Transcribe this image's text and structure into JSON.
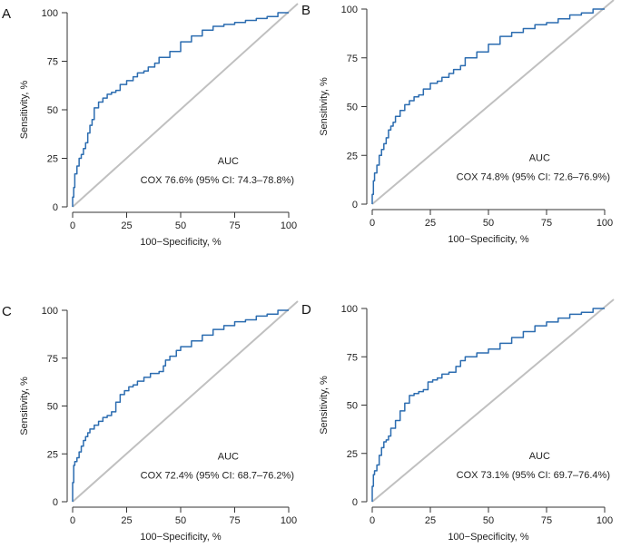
{
  "chart_data": [
    {
      "type": "line",
      "panel": "A",
      "xlabel": "100−Specificity, %",
      "ylabel": "Sensitivity, %",
      "xlim": [
        0,
        100
      ],
      "ylim": [
        0,
        100
      ],
      "xticks": [
        "0",
        "25",
        "50",
        "75",
        "100"
      ],
      "yticks": [
        "0",
        "25",
        "50",
        "75",
        "100"
      ],
      "legend_title": "AUC",
      "legend_text": "COX  76.6% (95% CI: 74.3–78.8%)",
      "series": [
        {
          "name": "ROC",
          "x": [
            0,
            0.5,
            1,
            2,
            3,
            4,
            5,
            6,
            7,
            8,
            9,
            10,
            12,
            14,
            16,
            18,
            20,
            22,
            25,
            28,
            30,
            33,
            35,
            38,
            40,
            45,
            50,
            55,
            60,
            65,
            70,
            75,
            80,
            85,
            90,
            95,
            100
          ],
          "y": [
            0,
            5,
            10,
            17,
            21,
            25,
            27,
            30,
            33,
            38,
            42,
            45,
            51,
            54,
            56,
            58,
            59,
            60,
            63,
            65,
            67,
            69,
            70,
            72,
            74,
            77,
            80,
            85,
            88,
            91,
            93,
            94,
            95,
            96,
            97,
            98,
            100
          ]
        },
        {
          "name": "reference",
          "x": [
            0,
            100
          ],
          "y": [
            0,
            100
          ]
        }
      ]
    },
    {
      "type": "line",
      "panel": "B",
      "xlabel": "100−Specificity, %",
      "ylabel": "Sensitivity, %",
      "xlim": [
        0,
        100
      ],
      "ylim": [
        0,
        100
      ],
      "xticks": [
        "0",
        "25",
        "50",
        "75",
        "100"
      ],
      "yticks": [
        "0",
        "25",
        "50",
        "75",
        "100"
      ],
      "legend_title": "AUC",
      "legend_text": "COX  74.8% (95% CI: 72.6–76.9%)",
      "series": [
        {
          "name": "ROC",
          "x": [
            0,
            0.5,
            1,
            2,
            3,
            4,
            5,
            6,
            7,
            8,
            9,
            10,
            12,
            14,
            16,
            18,
            20,
            22,
            25,
            28,
            30,
            33,
            35,
            38,
            40,
            45,
            50,
            55,
            60,
            65,
            70,
            75,
            80,
            85,
            90,
            95,
            100
          ],
          "y": [
            0,
            5,
            12,
            16,
            20,
            25,
            28,
            31,
            34,
            38,
            40,
            42,
            45,
            48,
            51,
            53,
            55,
            56,
            59,
            62,
            63,
            65,
            67,
            69,
            71,
            75,
            78,
            82,
            86,
            88,
            90,
            92,
            93,
            95,
            97,
            98,
            100
          ]
        },
        {
          "name": "reference",
          "x": [
            0,
            100
          ],
          "y": [
            0,
            100
          ]
        }
      ]
    },
    {
      "type": "line",
      "panel": "C",
      "xlabel": "100−Specificity, %",
      "ylabel": "Sensitivity, %",
      "xlim": [
        0,
        100
      ],
      "ylim": [
        0,
        100
      ],
      "xticks": [
        "0",
        "25",
        "50",
        "75",
        "100"
      ],
      "yticks": [
        "0",
        "25",
        "50",
        "75",
        "100"
      ],
      "legend_title": "AUC",
      "legend_text": "COX  72.4% (95% CI: 68.7–76.2%)",
      "series": [
        {
          "name": "ROC",
          "x": [
            0,
            0.5,
            1,
            2,
            3,
            4,
            5,
            6,
            7,
            8,
            10,
            12,
            14,
            16,
            18,
            20,
            22,
            24,
            26,
            28,
            30,
            33,
            36,
            40,
            42,
            43,
            45,
            48,
            50,
            55,
            60,
            65,
            70,
            75,
            80,
            85,
            90,
            95,
            100
          ],
          "y": [
            0,
            10,
            19,
            21,
            23,
            26,
            29,
            32,
            34,
            36,
            38,
            40,
            42,
            44,
            45,
            47,
            52,
            56,
            58,
            60,
            61,
            63,
            65,
            67,
            68,
            71,
            74,
            76,
            79,
            81,
            84,
            87,
            90,
            92,
            94,
            95,
            97,
            98,
            100
          ]
        },
        {
          "name": "reference",
          "x": [
            0,
            100
          ],
          "y": [
            0,
            100
          ]
        }
      ]
    },
    {
      "type": "line",
      "panel": "D",
      "xlabel": "100−Specificity, %",
      "ylabel": "Sensitivity, %",
      "xlim": [
        0,
        100
      ],
      "ylim": [
        0,
        100
      ],
      "xticks": [
        "0",
        "25",
        "50",
        "75",
        "100"
      ],
      "yticks": [
        "0",
        "25",
        "50",
        "75",
        "100"
      ],
      "legend_title": "AUC",
      "legend_text": "COX  73.1% (95% CI: 69.7–76.4%)",
      "series": [
        {
          "name": "ROC",
          "x": [
            0,
            0.5,
            1,
            2,
            3,
            4,
            5,
            6,
            7,
            8,
            10,
            12,
            14,
            16,
            18,
            20,
            22,
            24,
            26,
            28,
            30,
            33,
            36,
            38,
            40,
            45,
            50,
            55,
            60,
            65,
            70,
            75,
            80,
            85,
            90,
            95,
            100
          ],
          "y": [
            0,
            8,
            14,
            16,
            19,
            24,
            28,
            31,
            32,
            34,
            38,
            42,
            47,
            51,
            55,
            56,
            57,
            58,
            62,
            63,
            64,
            66,
            67,
            70,
            73,
            75,
            77,
            79,
            82,
            85,
            88,
            91,
            93,
            95,
            97,
            98,
            100
          ]
        },
        {
          "name": "reference",
          "x": [
            0,
            100
          ],
          "y": [
            0,
            100
          ]
        }
      ]
    }
  ]
}
